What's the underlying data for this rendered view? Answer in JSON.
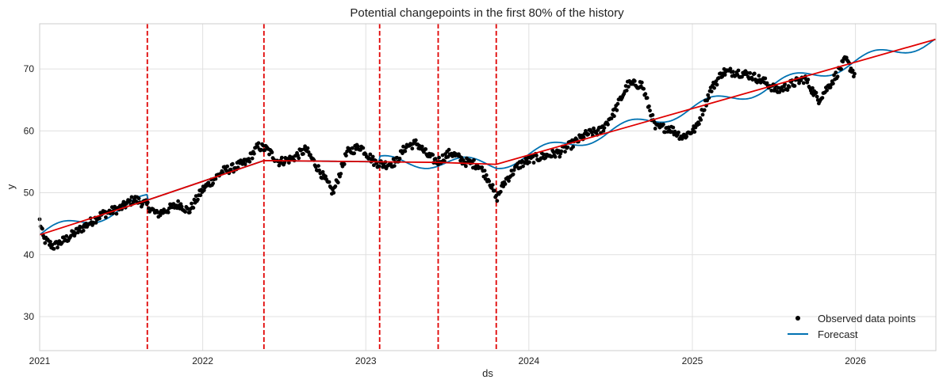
{
  "chart_data": {
    "type": "line",
    "title": "Potential changepoints in the first 80% of the history",
    "xlabel": "ds",
    "ylabel": "y",
    "xlim": [
      "2021-01-01",
      "2026-06-30"
    ],
    "ylim": [
      24.5,
      77.3
    ],
    "x_ticks": [
      "2021",
      "2022",
      "2023",
      "2024",
      "2025",
      "2026"
    ],
    "y_ticks": [
      30,
      40,
      50,
      60,
      70
    ],
    "grid": true,
    "legend_position": "lower-right",
    "legend": [
      {
        "label": "Observed data points",
        "marker": "dot",
        "color": "#000000"
      },
      {
        "label": "Forecast",
        "marker": "line",
        "color": "#0072B2"
      }
    ],
    "colors": {
      "observed": "#000000",
      "forecast": "#0072B2",
      "trend": "#e00000",
      "changepoint": "#e00000",
      "grid": "#e0e0e0",
      "frame": "#cccccc"
    },
    "changepoints": [
      "2021-08-30",
      "2022-05-18",
      "2023-02-01",
      "2023-06-12",
      "2023-10-20"
    ],
    "trend": {
      "x": [
        "2021-01-01",
        "2021-08-30",
        "2022-05-18",
        "2023-02-01",
        "2023-06-12",
        "2023-10-20",
        "2026-06-30"
      ],
      "y": [
        43.2,
        48.8,
        55.2,
        55.0,
        54.9,
        54.6,
        74.8
      ]
    },
    "observed_anchors": {
      "x": [
        "2021-01-01",
        "2021-01-10",
        "2021-02-01",
        "2021-03-01",
        "2021-04-10",
        "2021-05-20",
        "2021-07-01",
        "2021-08-01",
        "2021-08-30",
        "2021-09-20",
        "2021-10-20",
        "2021-11-10",
        "2021-12-01",
        "2022-01-01",
        "2022-02-15",
        "2022-03-10",
        "2022-04-10",
        "2022-05-05",
        "2022-05-25",
        "2022-06-20",
        "2022-07-20",
        "2022-08-20",
        "2022-09-20",
        "2022-10-20",
        "2022-11-20",
        "2022-12-20",
        "2023-01-20",
        "2023-02-10",
        "2023-03-10",
        "2023-04-01",
        "2023-04-25",
        "2023-05-20",
        "2023-06-10",
        "2023-07-10",
        "2023-08-10",
        "2023-09-10",
        "2023-10-05",
        "2023-10-20",
        "2023-11-10",
        "2023-12-10",
        "2024-01-10",
        "2024-02-10",
        "2024-03-10",
        "2024-04-10",
        "2024-05-10",
        "2024-06-10",
        "2024-07-10",
        "2024-08-10",
        "2024-09-10",
        "2024-10-10",
        "2024-11-10",
        "2024-12-10",
        "2025-01-10",
        "2025-02-10",
        "2025-03-10",
        "2025-04-10",
        "2025-05-10",
        "2025-06-10",
        "2025-07-10",
        "2025-08-10",
        "2025-09-10",
        "2025-10-10",
        "2025-11-10",
        "2025-12-10",
        "2025-12-31"
      ],
      "y": [
        45.5,
        42.5,
        41.3,
        42.5,
        44.5,
        46.5,
        47.5,
        49.0,
        48.0,
        46.5,
        47.5,
        48.2,
        47.0,
        50.5,
        53.5,
        54.0,
        55.0,
        57.5,
        57.0,
        55.0,
        55.5,
        57.0,
        53.5,
        50.0,
        56.5,
        57.5,
        55.0,
        54.5,
        55.0,
        57.5,
        58.0,
        56.0,
        55.0,
        56.5,
        55.0,
        54.5,
        52.0,
        49.0,
        52.0,
        54.5,
        55.5,
        56.0,
        56.5,
        58.0,
        59.5,
        60.0,
        63.0,
        67.5,
        67.5,
        60.5,
        60.5,
        59.0,
        60.5,
        66.5,
        69.5,
        69.5,
        69.0,
        68.0,
        66.5,
        67.5,
        68.5,
        65.0,
        68.0,
        71.5,
        69.0
      ]
    },
    "forecast_seasonality": {
      "amplitude": 1.0,
      "period_days": 182,
      "active_ranges": [
        [
          "2021-01-01",
          "2021-08-30"
        ],
        [
          "2023-02-01",
          "2026-06-30"
        ]
      ]
    }
  }
}
